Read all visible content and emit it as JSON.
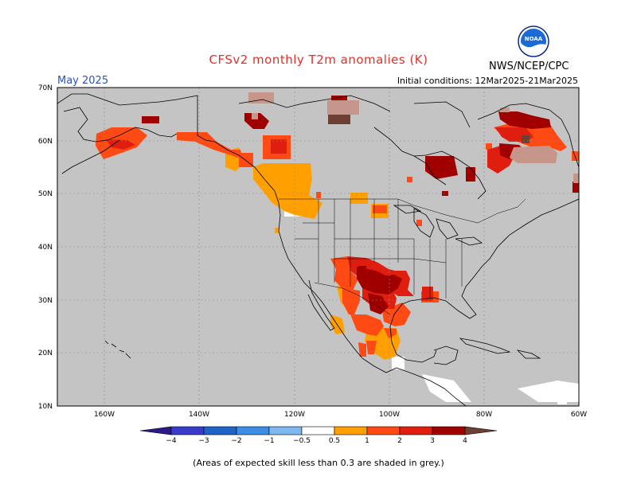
{
  "header": {
    "title": "CFSv2 monthly T2m anomalies (K)",
    "valid_month": "May 2025",
    "initial_conditions": "Initial conditions: 12Mar2025-21Mar2025",
    "organization": "NWS/NCEP/CPC",
    "logo_text": "NOAA"
  },
  "map": {
    "lon_range": [
      -170,
      -60
    ],
    "lat_range": [
      10,
      70
    ],
    "lat_labels": [
      "70N",
      "60N",
      "50N",
      "40N",
      "30N",
      "20N",
      "10N"
    ],
    "lon_labels": [
      "160W",
      "140W",
      "120W",
      "100W",
      "80W",
      "60W"
    ],
    "background_color": "#c4c4c4",
    "anomaly_regions": [
      {
        "name": "Alaska west",
        "level": 2
      },
      {
        "name": "Southern Alaska coast",
        "level": 2
      },
      {
        "name": "Northern Yukon",
        "level": 3
      },
      {
        "name": "Queen Elizabeth Islands",
        "level": 4
      },
      {
        "name": "British Columbia",
        "level": 1
      },
      {
        "name": "Northern Alberta",
        "level": 2
      },
      {
        "name": "Texas / Southern Plains",
        "level": 3
      },
      {
        "name": "Northern Mexico",
        "level": 2
      },
      {
        "name": "Southern Mexico",
        "level": 1
      },
      {
        "name": "Hudson Bay east",
        "level": 3
      },
      {
        "name": "Labrador / Quebec",
        "level": 3
      },
      {
        "name": "Baffin Island",
        "level": 4
      },
      {
        "name": "Upper Midwest",
        "level": 2
      }
    ]
  },
  "colorbar": {
    "labels": [
      "−4",
      "−3",
      "−2",
      "−1",
      "−0.5",
      "0.5",
      "1",
      "2",
      "3",
      "4"
    ],
    "colors": {
      "below_-4": "#2a1a8a",
      "-4_-3": "#3a3acb",
      "-3_-2": "#1e63c8",
      "-2_-1": "#3a8ee6",
      "-1_-0.5": "#7fb8f0",
      "-0.5_0.5": "#ffffff",
      "0.5_1": "#ffa000",
      "1_2": "#ff4a14",
      "2_3": "#e01e10",
      "3_4": "#a00000",
      "4_plus": "#c7968a",
      "above": "#6e4034"
    }
  },
  "footnote": "(Areas of expected skill less than 0.3 are shaded in grey.)"
}
